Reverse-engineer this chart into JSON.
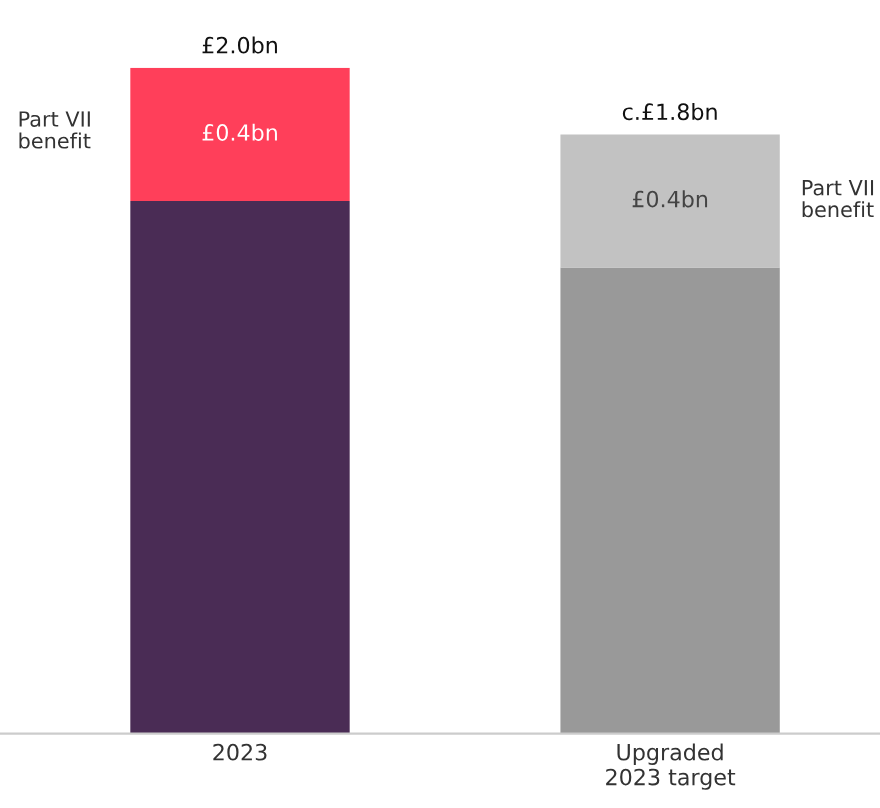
{
  "chart_data": {
    "type": "bar",
    "stacked": true,
    "categories": [
      "2023",
      "Upgraded\n2023 target"
    ],
    "series": [
      {
        "colors": [
          "#4a2c55",
          "#999999"
        ],
        "values": [
          1.6,
          1.4
        ]
      },
      {
        "colors": [
          "#ff3f5a",
          "#c2c2c2"
        ],
        "values": [
          0.4,
          0.4
        ],
        "value_labels": [
          "£0.4bn",
          "£0.4bn"
        ]
      }
    ],
    "totals": [
      "£2.0bn",
      "c.£1.8bn"
    ],
    "annotations": [
      "Part VII\nbenefit",
      "Part VII\nbenefit"
    ],
    "grid": false,
    "legend": false
  }
}
